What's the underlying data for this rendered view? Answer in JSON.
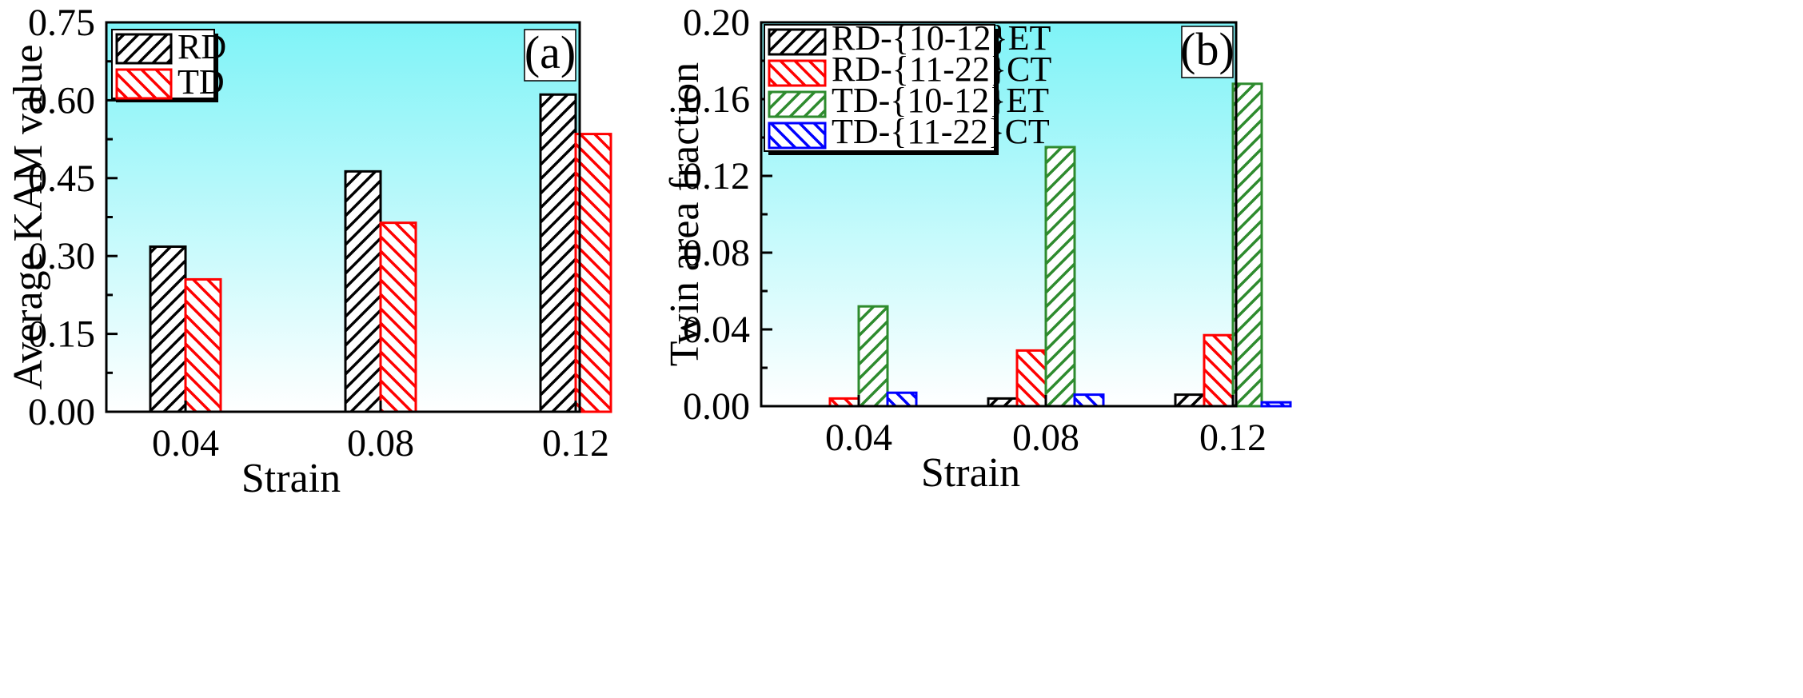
{
  "colors": {
    "bg_top": "#7EF3F7",
    "bg_bottom": "#FFFFFF",
    "black": "#000000",
    "red": "#FF0000",
    "green": "#2E8B2E",
    "blue": "#0000FF"
  },
  "chart_data": [
    {
      "type": "bar",
      "panel_label": "(a)",
      "title": "",
      "xlabel": "Strain",
      "ylabel": "Average KAM value",
      "categories": [
        "0.04",
        "0.08",
        "0.12"
      ],
      "ylim": [
        0,
        0.75
      ],
      "yticks": [
        "0.00",
        "0.15",
        "0.30",
        "0.45",
        "0.60",
        "0.75"
      ],
      "legend_position": "top-left",
      "series": [
        {
          "name": "RD",
          "color": "#000000",
          "hatch": "forward",
          "values": [
            0.318,
            0.463,
            0.611
          ]
        },
        {
          "name": "TD",
          "color": "#FF0000",
          "hatch": "backward",
          "values": [
            0.255,
            0.364,
            0.535
          ]
        }
      ]
    },
    {
      "type": "bar",
      "panel_label": "(b)",
      "title": "",
      "xlabel": "Strain",
      "ylabel": "Twin area fraction",
      "categories": [
        "0.04",
        "0.08",
        "0.12"
      ],
      "ylim": [
        0,
        0.2
      ],
      "yticks": [
        "0.00",
        "0.04",
        "0.08",
        "0.12",
        "0.16",
        "0.20"
      ],
      "legend_position": "top-left",
      "series": [
        {
          "name": "RD-{10-12}ET",
          "color": "#000000",
          "hatch": "forward",
          "values": [
            0.0,
            0.004,
            0.006
          ]
        },
        {
          "name": "RD-{11-22}CT",
          "color": "#FF0000",
          "hatch": "backward",
          "values": [
            0.004,
            0.029,
            0.037
          ]
        },
        {
          "name": "TD-{10-12}ET",
          "color": "#2E8B2E",
          "hatch": "forward",
          "values": [
            0.052,
            0.135,
            0.168
          ]
        },
        {
          "name": "TD-{11-22}CT",
          "color": "#0000FF",
          "hatch": "backward",
          "values": [
            0.007,
            0.006,
            0.002
          ]
        }
      ]
    }
  ]
}
